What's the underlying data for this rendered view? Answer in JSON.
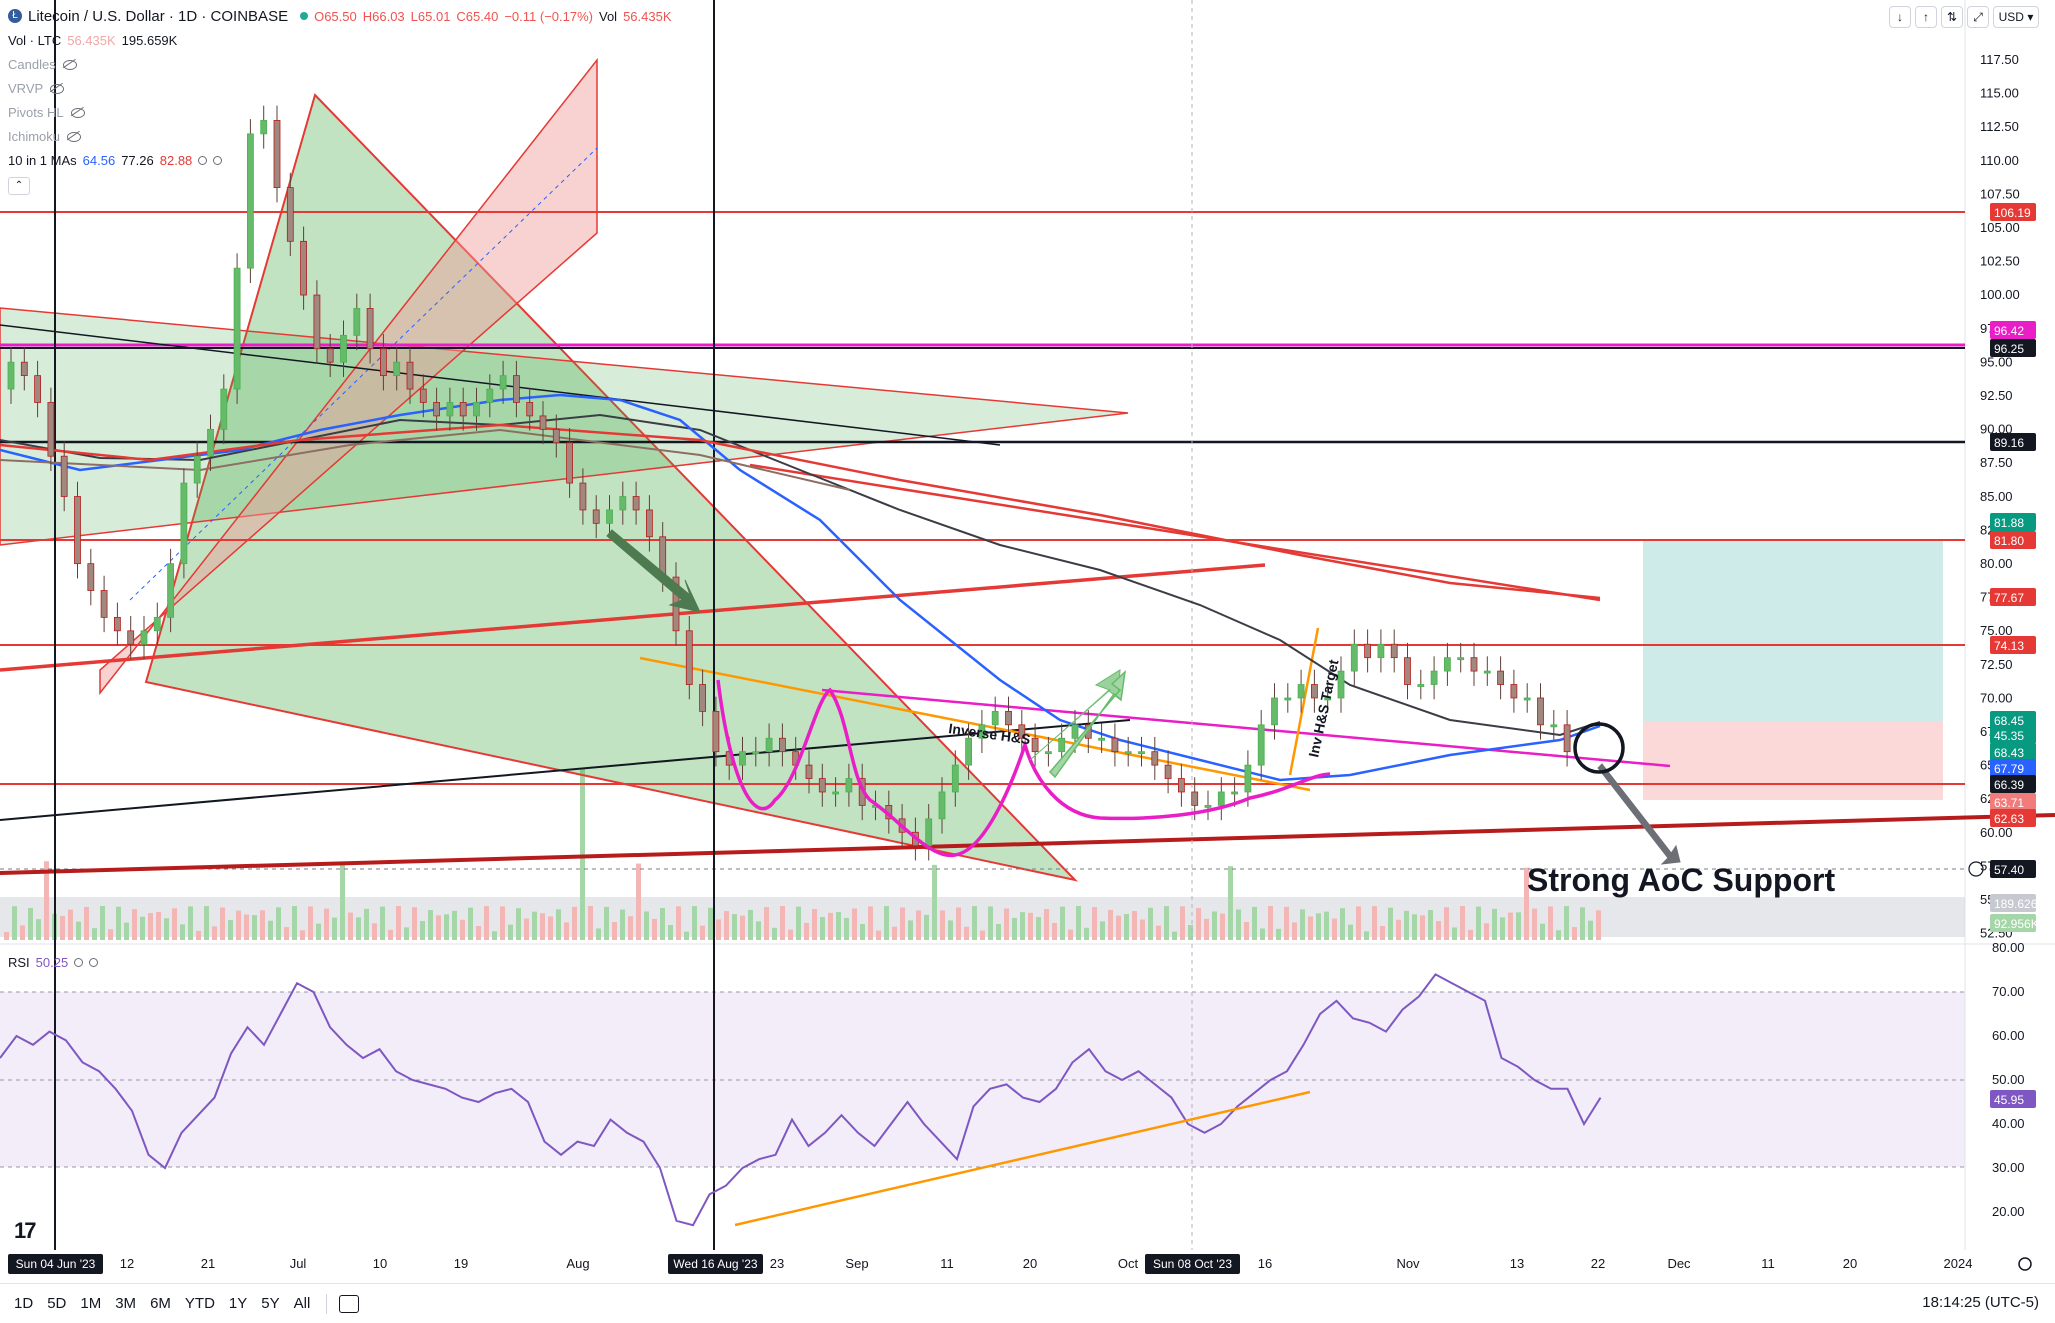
{
  "header": {
    "symbol_title": "Litecoin / U.S. Dollar · 1D · COINBASE",
    "ohlc": {
      "open": "O65.50",
      "high": "H66.03",
      "low": "L65.01",
      "close": "C65.40",
      "change": "−0.11 (−0.17%)",
      "vol": "Vol",
      "vol_value": "56.435K"
    },
    "vol_ltc_label": "Vol · LTC",
    "vol_ltc_values": [
      "56.435K",
      "195.659K"
    ],
    "indicators": [
      "Candles",
      "VRVP",
      "Pivots HL",
      "Ichimoku"
    ],
    "mas_label": "10 in 1 MAs",
    "mas_values": [
      "64.56",
      "77.26",
      "82.88"
    ],
    "currency": "USD"
  },
  "price_axis": {
    "ticks": [
      "117.50",
      "115.00",
      "112.50",
      "110.00",
      "107.50",
      "105.00",
      "102.50",
      "100.00",
      "97.50",
      "95.00",
      "92.50",
      "90.00",
      "87.50",
      "85.00",
      "82.50",
      "80.00",
      "77.50",
      "75.00",
      "72.50",
      "70.00",
      "67.50",
      "65.00",
      "62.50",
      "60.00",
      "57.50",
      "55.00",
      "52.50"
    ],
    "badges": [
      {
        "text": "106.19",
        "color": "#e53935"
      },
      {
        "text": "96.42",
        "color": "#e91ec6"
      },
      {
        "text": "96.25",
        "color": "#131722"
      },
      {
        "text": "89.16",
        "color": "#131722"
      },
      {
        "text": "81.88",
        "color": "#089981"
      },
      {
        "text": "81.80",
        "color": "#e53935"
      },
      {
        "text": "77.67",
        "color": "#e53935"
      },
      {
        "text": "74.13",
        "color": "#e53935"
      },
      {
        "text": "68.45",
        "color": "#089981"
      },
      {
        "text": "45.35",
        "color": "#089981"
      },
      {
        "text": "68.43",
        "color": "#089981"
      },
      {
        "text": "67.79",
        "color": "#2962ff"
      },
      {
        "text": "66.39",
        "color": "#131722"
      },
      {
        "text": "63.71",
        "color": "#f07c7c"
      },
      {
        "text": "62.63",
        "color": "#e53935"
      },
      {
        "text": "57.40",
        "color": "#131722"
      },
      {
        "text": "189.626K",
        "color": "#c7c9d0"
      },
      {
        "text": "92.956K",
        "color": "#a5d6a7"
      }
    ]
  },
  "rsi": {
    "label": "RSI",
    "value": "50.25",
    "ticks": [
      "80.00",
      "70.00",
      "60.00",
      "50.00",
      "40.00",
      "30.00",
      "20.00"
    ],
    "badge": "45.95"
  },
  "time_axis": {
    "ticks": [
      "12",
      "21",
      "Jul",
      "10",
      "19",
      "Aug",
      "23",
      "Sep",
      "11",
      "20",
      "Oct",
      "16",
      "Nov",
      "13",
      "22",
      "Dec",
      "11",
      "20",
      "2024"
    ],
    "markers": [
      "Sun 04 Jun '23",
      "Wed 16 Aug '23",
      "Sun 08 Oct '23"
    ]
  },
  "annotations": {
    "inverse_hs": "Inverse H&S",
    "inv_target": "Inv H&S Target",
    "strong_support": "Strong AoC Support"
  },
  "bottom_bar": {
    "ranges": [
      "1D",
      "5D",
      "1M",
      "3M",
      "6M",
      "YTD",
      "1Y",
      "5Y",
      "All"
    ],
    "clock": "18:14:25 (UTC-5)"
  },
  "logo_text": "17"
}
